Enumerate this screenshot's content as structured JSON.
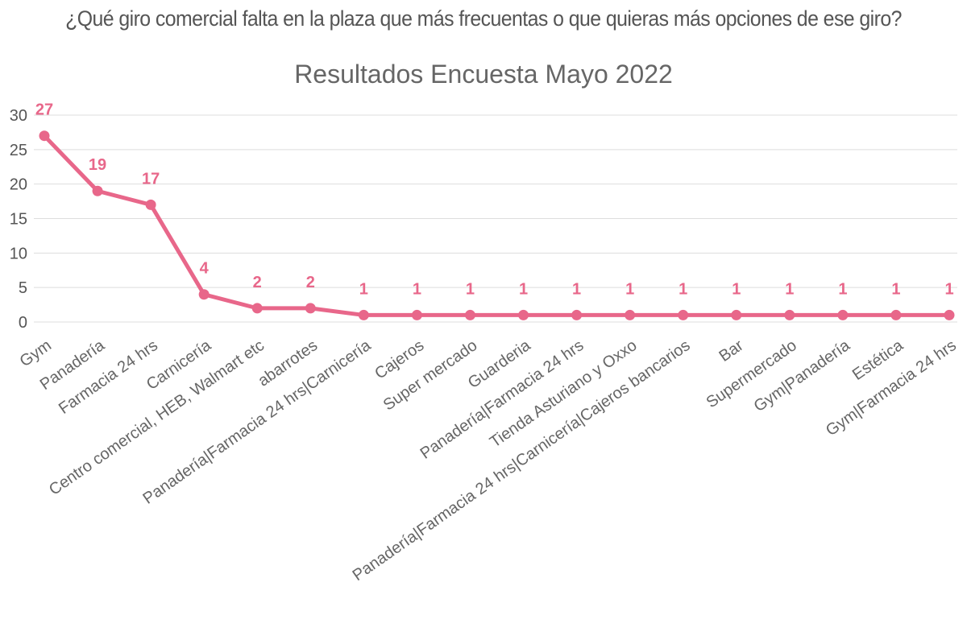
{
  "question": "¿Qué giro comercial falta en la plaza que más frecuentas o que quieras más opciones de ese giro?",
  "chart_data": {
    "type": "line",
    "title": "Resultados Encuesta Mayo 2022",
    "xlabel": "",
    "ylabel": "",
    "categories": [
      "Gym",
      "Panadería",
      "Farmacia 24 hrs",
      "Carnicería",
      "Centro comercial, HEB, Walmart etc",
      "abarrotes",
      "Panadería|Farmacia 24 hrs|Carnicería",
      "Cajeros",
      "Super mercado",
      "Guarderia",
      "Panadería|Farmacia 24 hrs",
      "Tienda Asturiano y Oxxo",
      "Panadería|Farmacia 24 hrs|Carnicería|Cajeros bancarios",
      "Bar",
      "Supermercado",
      "Gym|Panadería",
      "Estética",
      "Gym|Farmacia 24 hrs"
    ],
    "values": [
      27,
      19,
      17,
      4,
      2,
      2,
      1,
      1,
      1,
      1,
      1,
      1,
      1,
      1,
      1,
      1,
      1,
      1
    ],
    "data_labels": [
      "27",
      "19",
      "17",
      "4",
      "2",
      "2",
      "1",
      "1",
      "1",
      "1",
      "1",
      "1",
      "1",
      "1",
      "1",
      "1",
      "1",
      "1"
    ],
    "ylim": [
      0,
      30
    ],
    "yticks": [
      "0",
      "5",
      "10",
      "15",
      "20",
      "25",
      "30"
    ],
    "grid": true,
    "legend": "none",
    "color": "#e8678a"
  }
}
